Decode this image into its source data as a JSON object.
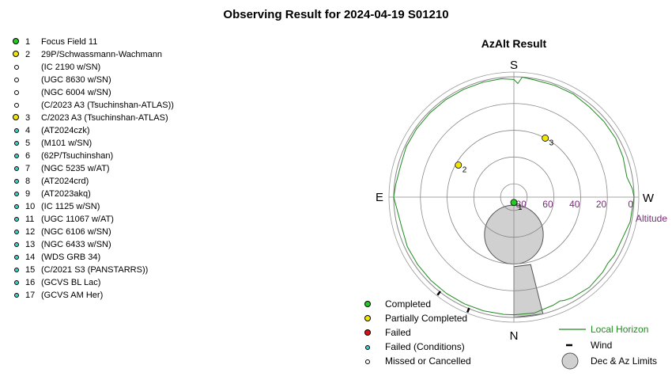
{
  "page_title": "Observing Result for 2024-04-19  S01210",
  "colors": {
    "completed": "#22cc22",
    "partially_completed": "#f2e600",
    "failed": "#dd1111",
    "failed_conditions": "#3fd0d0",
    "missed_or_cancelled": "#ffffff",
    "local_horizon": "#1f8a1f",
    "altitude_labels": "#7a2a7a",
    "limits_fill": "#d0d0d0"
  },
  "targets": [
    {
      "num": "1",
      "name": "Focus Field 11",
      "status": "completed"
    },
    {
      "num": "2",
      "name": "29P/Schwassmann-Wachmann",
      "status": "partially_completed"
    },
    {
      "num": "",
      "name": "(IC 2190 w/SN)",
      "status": "missed_or_cancelled"
    },
    {
      "num": "",
      "name": "(UGC 8630 w/SN)",
      "status": "missed_or_cancelled"
    },
    {
      "num": "",
      "name": "(NGC 6004 w/SN)",
      "status": "missed_or_cancelled"
    },
    {
      "num": "",
      "name": "(C/2023 A3 (Tsuchinshan-ATLAS))",
      "status": "missed_or_cancelled"
    },
    {
      "num": "3",
      "name": "C/2023 A3 (Tsuchinshan-ATLAS)",
      "status": "partially_completed"
    },
    {
      "num": "4",
      "name": "(AT2024czk)",
      "status": "failed_conditions"
    },
    {
      "num": "5",
      "name": "(M101 w/SN)",
      "status": "failed_conditions"
    },
    {
      "num": "6",
      "name": "(62P/Tsuchinshan)",
      "status": "failed_conditions"
    },
    {
      "num": "7",
      "name": "(NGC 5235 w/AT)",
      "status": "failed_conditions"
    },
    {
      "num": "8",
      "name": "(AT2024crd)",
      "status": "failed_conditions"
    },
    {
      "num": "9",
      "name": "(AT2023akq)",
      "status": "failed_conditions"
    },
    {
      "num": "10",
      "name": "(IC 1125 w/SN)",
      "status": "failed_conditions"
    },
    {
      "num": "11",
      "name": "(UGC 11067 w/AT)",
      "status": "failed_conditions"
    },
    {
      "num": "12",
      "name": "(NGC 6106 w/SN)",
      "status": "failed_conditions"
    },
    {
      "num": "13",
      "name": "(NGC 6433 w/SN)",
      "status": "failed_conditions"
    },
    {
      "num": "14",
      "name": "(WDS GRB 34)",
      "status": "failed_conditions"
    },
    {
      "num": "15",
      "name": "(C/2021 S3 (PANSTARRS))",
      "status": "failed_conditions"
    },
    {
      "num": "16",
      "name": "(GCVS BL Lac)",
      "status": "failed_conditions"
    },
    {
      "num": "17",
      "name": "(GCVS AM Her)",
      "status": "failed_conditions"
    }
  ],
  "chart_data": {
    "type": "polar",
    "title": "AzAlt Result",
    "directions": {
      "top": "S",
      "bottom": "N",
      "left": "E",
      "right": "W"
    },
    "altitude_ticks": [
      80,
      60,
      40,
      20,
      0
    ],
    "altitude_label": "Altitude",
    "points": [
      {
        "label": "1",
        "azimuth": 0,
        "altitude": 86,
        "status": "completed"
      },
      {
        "label": "2",
        "azimuth": 240,
        "altitude": 42,
        "status": "partially_completed"
      },
      {
        "label": "3",
        "azimuth": 152,
        "altitude": 40,
        "status": "partially_completed"
      }
    ],
    "limits": {
      "circle": {
        "azimuth": 0,
        "altitude": 62,
        "radius_deg": 22
      },
      "wedge_azimuths": [
        0,
        14
      ],
      "wedge_min_altitude": 38
    },
    "local_horizon": [
      [
        0,
        2
      ],
      [
        10,
        2
      ],
      [
        20,
        4
      ],
      [
        24,
        5
      ],
      [
        26,
        4
      ],
      [
        30,
        3
      ],
      [
        40,
        2
      ],
      [
        50,
        3
      ],
      [
        55,
        4
      ],
      [
        60,
        3
      ],
      [
        70,
        3
      ],
      [
        78,
        1
      ],
      [
        90,
        0
      ],
      [
        94,
        1
      ],
      [
        100,
        4
      ],
      [
        110,
        3
      ],
      [
        120,
        2
      ],
      [
        130,
        2
      ],
      [
        140,
        2
      ],
      [
        150,
        1
      ],
      [
        160,
        1
      ],
      [
        170,
        1
      ],
      [
        176,
        0
      ],
      [
        178,
        5
      ],
      [
        180,
        2
      ],
      [
        186,
        1
      ],
      [
        195,
        1
      ],
      [
        205,
        1
      ],
      [
        215,
        1
      ],
      [
        225,
        1
      ],
      [
        235,
        1
      ],
      [
        245,
        1
      ],
      [
        255,
        2
      ],
      [
        264,
        1
      ],
      [
        270,
        0
      ],
      [
        276,
        2
      ],
      [
        285,
        3
      ],
      [
        295,
        2
      ],
      [
        305,
        2
      ],
      [
        315,
        2
      ],
      [
        325,
        2
      ],
      [
        335,
        2
      ],
      [
        345,
        2
      ],
      [
        355,
        2
      ],
      [
        360,
        2
      ]
    ],
    "wind_azimuths": [
      322,
      338
    ]
  },
  "legend": {
    "completed": "Completed",
    "partially_completed": "Partially Completed",
    "failed": "Failed",
    "failed_conditions": "Failed (Conditions)",
    "missed_or_cancelled": "Missed or Cancelled",
    "local_horizon": "Local Horizon",
    "wind": "Wind",
    "limits": "Dec & Az Limits"
  }
}
